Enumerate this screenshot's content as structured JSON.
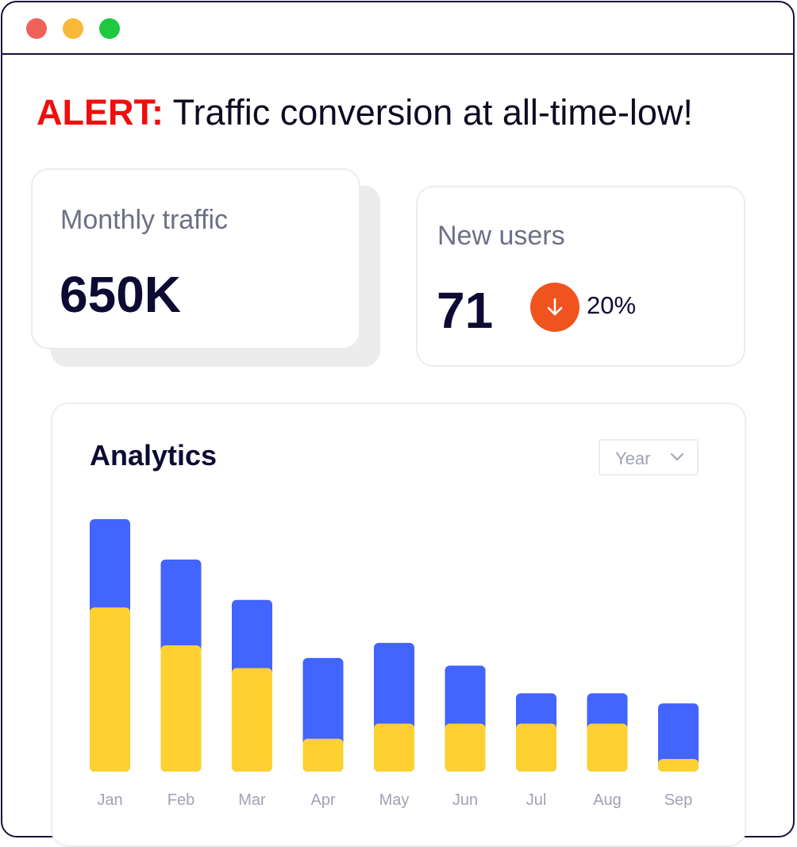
{
  "window": {
    "controls": [
      {
        "name": "close",
        "color": "#f0615a"
      },
      {
        "name": "minimize",
        "color": "#f8b838"
      },
      {
        "name": "maximize",
        "color": "#1ec940"
      }
    ]
  },
  "alert": {
    "label": "ALERT:",
    "message": " Traffic conversion at all-time-low!",
    "label_color": "#f20d0d"
  },
  "monthly_traffic": {
    "label": "Monthly traffic",
    "value": "650K"
  },
  "new_users": {
    "label": "New users",
    "value": "71",
    "trend_icon": "arrow-down-icon",
    "trend_color": "#f0531e",
    "trend_value": "20%"
  },
  "analytics": {
    "title": "Analytics",
    "period_select": {
      "value": "Year",
      "icon": "chevron-down-icon"
    }
  },
  "chart_data": {
    "type": "bar",
    "categories": [
      "Jan",
      "Feb",
      "Mar",
      "Apr",
      "May",
      "Jun",
      "Jul",
      "Aug",
      "Sep"
    ],
    "series": [
      {
        "color": "#4264ff",
        "values": [
          100,
          84,
          68,
          45,
          51,
          42,
          31,
          31,
          27
        ]
      },
      {
        "color": "#ffd130",
        "values": [
          65,
          50,
          41,
          13,
          19,
          19,
          19,
          19,
          5
        ]
      }
    ],
    "ylim": [
      0,
      100
    ],
    "grid": false,
    "legend": "none",
    "xlabel": "",
    "ylabel": "",
    "title": ""
  }
}
